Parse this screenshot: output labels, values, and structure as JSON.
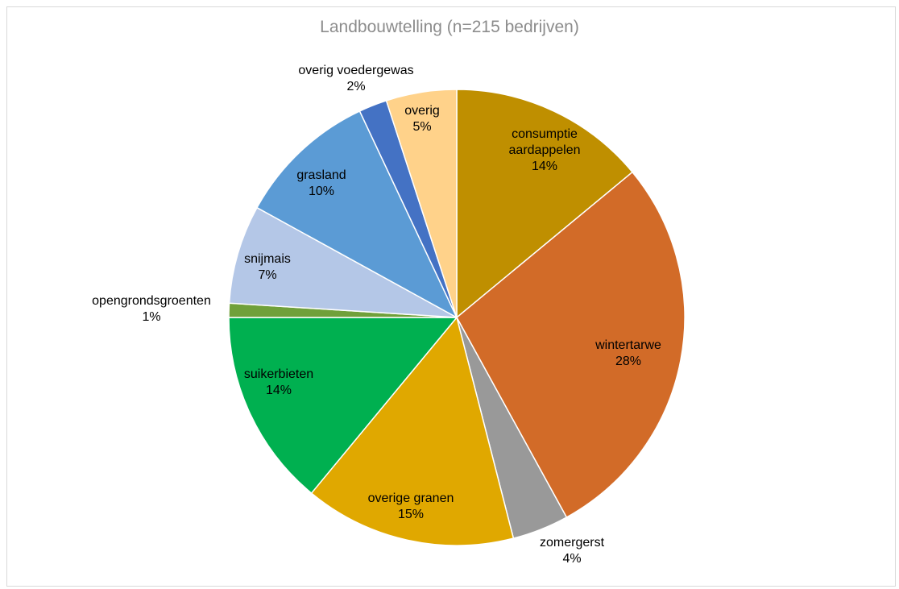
{
  "chart_data": {
    "type": "pie",
    "title": "Landbouwtelling (n=215 bedrijven)",
    "slices": [
      {
        "label_lines": [
          "consumptie",
          "aardappelen"
        ],
        "percent_label": "14%",
        "value": 14,
        "color": "#bf8f00"
      },
      {
        "label_lines": [
          "wintertarwe"
        ],
        "percent_label": "28%",
        "value": 28,
        "color": "#d26b28"
      },
      {
        "label_lines": [
          "zomergerst"
        ],
        "percent_label": "4%",
        "value": 4,
        "color": "#999999"
      },
      {
        "label_lines": [
          "overige granen"
        ],
        "percent_label": "15%",
        "value": 15,
        "color": "#e0a800"
      },
      {
        "label_lines": [
          "suikerbieten"
        ],
        "percent_label": "14%",
        "value": 14,
        "color": "#00b050"
      },
      {
        "label_lines": [
          "opengrondsgroenten"
        ],
        "percent_label": "1%",
        "value": 1,
        "color": "#70a03a"
      },
      {
        "label_lines": [
          "snijmais"
        ],
        "percent_label": "7%",
        "value": 7,
        "color": "#b4c7e7"
      },
      {
        "label_lines": [
          "grasland"
        ],
        "percent_label": "10%",
        "value": 10,
        "color": "#5b9bd5"
      },
      {
        "label_lines": [
          "overig voedergewas"
        ],
        "percent_label": "2%",
        "value": 2,
        "color": "#4472c4"
      },
      {
        "label_lines": [
          "overig"
        ],
        "percent_label": "5%",
        "value": 5,
        "color": "#ffd28a"
      }
    ],
    "start": "12 o'clock",
    "direction": "clockwise"
  }
}
